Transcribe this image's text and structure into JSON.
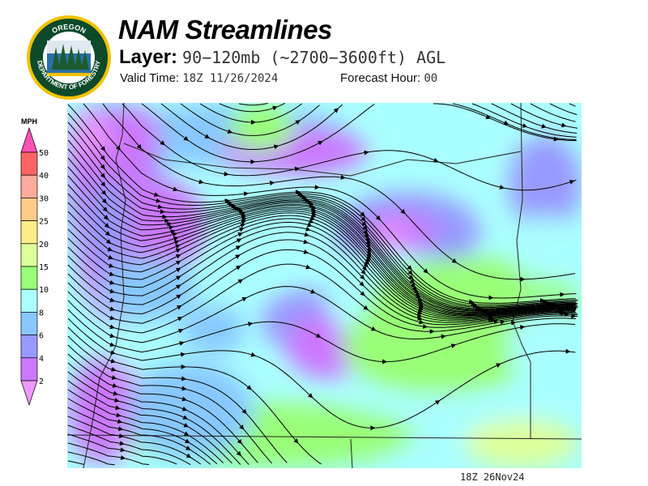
{
  "header": {
    "title": "NAM Streamlines",
    "layer_label": "Layer:",
    "layer_value": "90−120mb (~2700−3600ft) AGL",
    "valid_label": "Valid Time:",
    "valid_value": "18Z 11/26/2024",
    "forecast_label": "Forecast Hour:",
    "forecast_value": "00"
  },
  "logo": {
    "text_top": "OREGON",
    "text_bottom": "DEPARTMENT OF FORESTRY",
    "colors": {
      "ring": "#f2c200",
      "field": "#0c4a2a"
    }
  },
  "legend": {
    "unit": "MPH",
    "ticks": [
      "50",
      "40",
      "30",
      "25",
      "20",
      "15",
      "10",
      "8",
      "6",
      "4",
      "2"
    ],
    "colors": [
      "#ff50b4",
      "#ff6464",
      "#ffaa9a",
      "#ffcc88",
      "#ffee88",
      "#ddff99",
      "#99ff77",
      "#aaffff",
      "#88c8ff",
      "#9999ff",
      "#cc77ff",
      "#ee99ff"
    ]
  },
  "footer": {
    "timestamp": "18Z 26Nov24"
  }
}
